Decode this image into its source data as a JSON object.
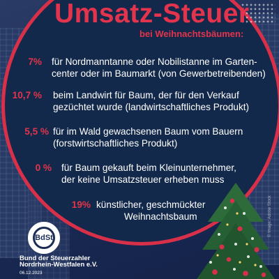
{
  "title": "Umsatz-Steuer",
  "subtitle": "bei Weihnachtsbäumen:",
  "rows": [
    {
      "pct": "7%",
      "line1": "für Nordmanntanne oder Nobilistanne im Garten-",
      "line2": "center oder im Baumarkt (von Gewerbetreibenden)"
    },
    {
      "pct": "10,7 %",
      "line1": "beim Landwirt für Baum, der für den Verkauf",
      "line2": "gezüchtet wurde (landwirtschaftliches Produkt)"
    },
    {
      "pct": "5,5 %",
      "line1": "für im Wald gewachsenen Baum vom Bauern",
      "line2": "(forstwirtschaftliches Produkt)"
    },
    {
      "pct": "0 %",
      "line1": "für Baum gekauft beim Kleinunternehmer,",
      "line2": "der keine Umsatzsteuer erheben muss"
    },
    {
      "pct": "19%",
      "line1": "künstlicher, geschmückter",
      "line2": "Weihnachtsbaum"
    }
  ],
  "logo": {
    "text": "BdSt"
  },
  "org": {
    "line1": "Bund der Steuerzahler",
    "line2": "Nordrhein-Westfalen e.V."
  },
  "date": "06.12.2023",
  "credit": "© Image: Adobe Stock"
}
